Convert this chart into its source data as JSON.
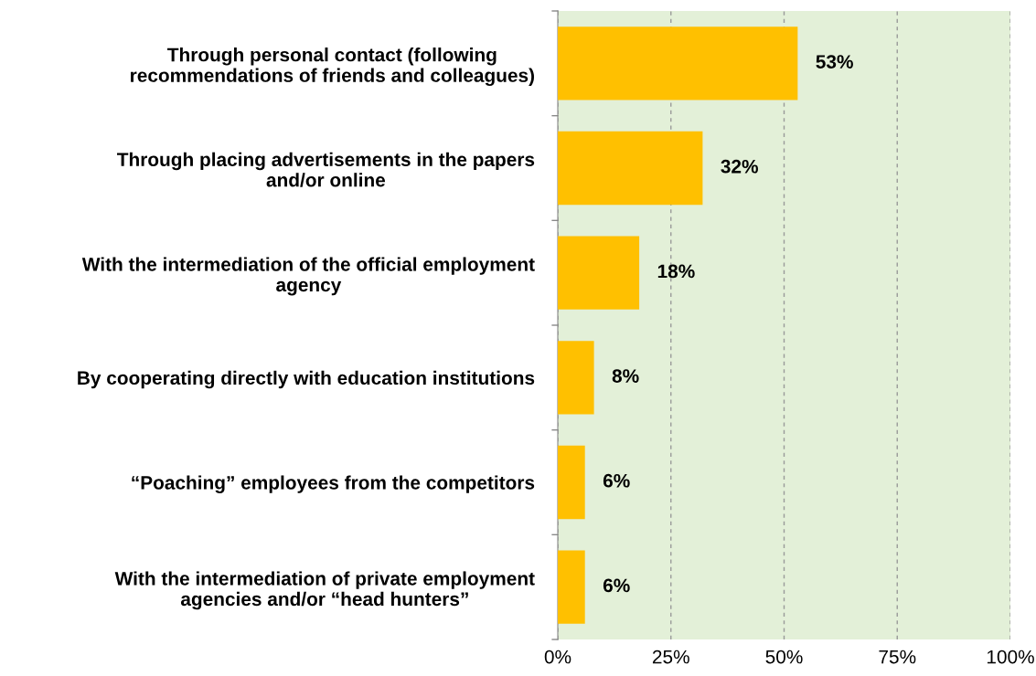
{
  "chart_data": {
    "type": "bar",
    "orientation": "horizontal",
    "categories": [
      "Through personal contact (following\nrecommendations of friends and colleagues)",
      "Through placing advertisements in the papers\nand/or online",
      "With the intermediation of the official employment\nagency",
      "By cooperating directly with education institutions",
      "“Poaching” employees from the competitors",
      "With the intermediation of private employment\nagencies and/or “head hunters”"
    ],
    "values": [
      53,
      32,
      18,
      8,
      6,
      6
    ],
    "value_labels": [
      "53%",
      "32%",
      "18%",
      "8%",
      "6%",
      "6%"
    ],
    "color": "#ffc000",
    "xlim": [
      0,
      100
    ],
    "xticks": [
      {
        "value": 0,
        "label": "0%"
      },
      {
        "value": 25,
        "label": "25%"
      },
      {
        "value": 50,
        "label": "50%"
      },
      {
        "value": 75,
        "label": "75%"
      },
      {
        "value": 100,
        "label": "100%"
      }
    ],
    "grid": "x"
  }
}
